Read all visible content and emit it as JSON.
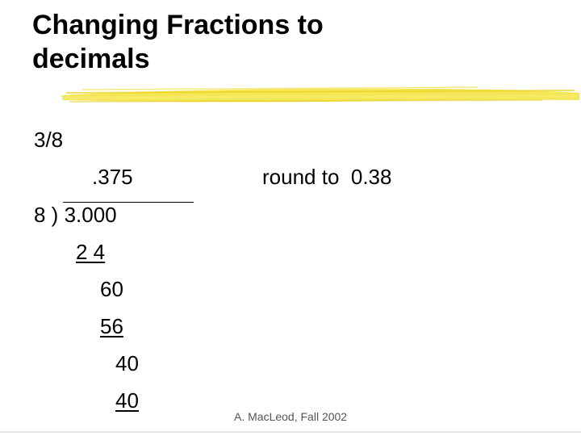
{
  "slide": {
    "title_line1": "Changing Fractions to",
    "title_line2": "decimals",
    "highlight_color": "#f2e23a"
  },
  "work": {
    "fraction": "3/8",
    "quotient": ".375",
    "round_note": "round to  0.38",
    "divisor_dividend": "8 ) 3.000",
    "step1_sub": "2 4",
    "step1_rem": "60",
    "step2_sub": "56",
    "step2_rem": "40",
    "step3_sub": "40"
  },
  "footer": {
    "credit": "A. MacLeod, Fall 2002"
  }
}
